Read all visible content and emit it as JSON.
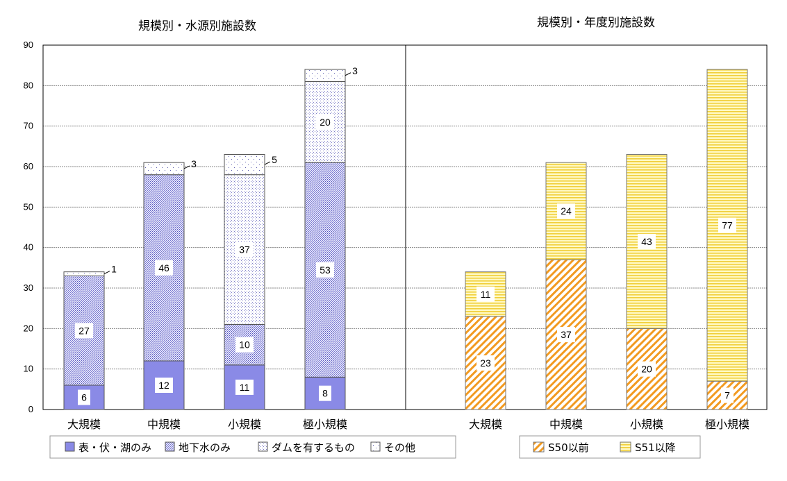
{
  "chart_data": [
    {
      "type": "bar",
      "stacked": true,
      "title": "規模別・水源別施設数",
      "categories": [
        "大規模",
        "中規模",
        "小規模",
        "極小規模"
      ],
      "ylim": [
        0,
        90
      ],
      "yticks": [
        0,
        10,
        20,
        30,
        40,
        50,
        60,
        70,
        80,
        90
      ],
      "grid": true,
      "legend_position": "bottom",
      "series": [
        {
          "name": "表・伏・湖のみ",
          "values": [
            6,
            12,
            11,
            8
          ]
        },
        {
          "name": "地下水のみ",
          "values": [
            27,
            46,
            10,
            53
          ]
        },
        {
          "name": "ダムを有するもの",
          "values": [
            0,
            0,
            37,
            20
          ]
        },
        {
          "name": "その他",
          "values": [
            1,
            3,
            5,
            3
          ]
        }
      ]
    },
    {
      "type": "bar",
      "stacked": true,
      "title": "規模別・年度別施設数",
      "categories": [
        "大規模",
        "中規模",
        "小規模",
        "極小規模"
      ],
      "ylim": [
        0,
        90
      ],
      "grid": true,
      "legend_position": "bottom",
      "series": [
        {
          "name": "S50以前",
          "values": [
            23,
            37,
            20,
            7
          ]
        },
        {
          "name": "S51以降",
          "values": [
            11,
            24,
            43,
            77
          ]
        }
      ]
    }
  ]
}
